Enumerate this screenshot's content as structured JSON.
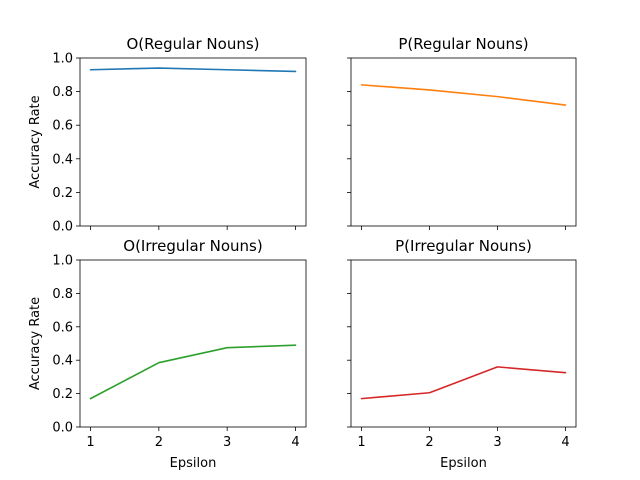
{
  "chart_data": [
    {
      "type": "line",
      "title": "O(Regular Nouns)",
      "ylabel": "Accuracy Rate",
      "xlabel": "",
      "x": [
        1,
        2,
        3,
        4
      ],
      "values": [
        0.93,
        0.94,
        0.93,
        0.92
      ],
      "color": "#1f77b4",
      "xlim": [
        1,
        4
      ],
      "ylim": [
        0,
        1
      ],
      "yticks": [
        "0.0",
        "0.2",
        "0.4",
        "0.6",
        "0.8",
        "1.0"
      ],
      "xticks": []
    },
    {
      "type": "line",
      "title": "P(Regular Nouns)",
      "ylabel": "",
      "xlabel": "",
      "x": [
        1,
        2,
        3,
        4
      ],
      "values": [
        0.84,
        0.81,
        0.77,
        0.72
      ],
      "color": "#ff7f0e",
      "xlim": [
        1,
        4
      ],
      "ylim": [
        0,
        1
      ],
      "yticks": [],
      "xticks": []
    },
    {
      "type": "line",
      "title": "O(Irregular Nouns)",
      "ylabel": "Accuracy Rate",
      "xlabel": "Epsilon",
      "x": [
        1,
        2,
        3,
        4
      ],
      "values": [
        0.17,
        0.385,
        0.475,
        0.49
      ],
      "color": "#2ca02c",
      "xlim": [
        1,
        4
      ],
      "ylim": [
        0,
        1
      ],
      "yticks": [
        "0.0",
        "0.2",
        "0.4",
        "0.6",
        "0.8",
        "1.0"
      ],
      "xticks": [
        "1",
        "2",
        "3",
        "4"
      ]
    },
    {
      "type": "line",
      "title": "P(Irregular Nouns)",
      "ylabel": "",
      "xlabel": "Epsilon",
      "x": [
        1,
        2,
        3,
        4
      ],
      "values": [
        0.17,
        0.205,
        0.36,
        0.325
      ],
      "color": "#d62728",
      "xlim": [
        1,
        4
      ],
      "ylim": [
        0,
        1
      ],
      "yticks": [],
      "xticks": [
        "1",
        "2",
        "3",
        "4"
      ]
    }
  ]
}
